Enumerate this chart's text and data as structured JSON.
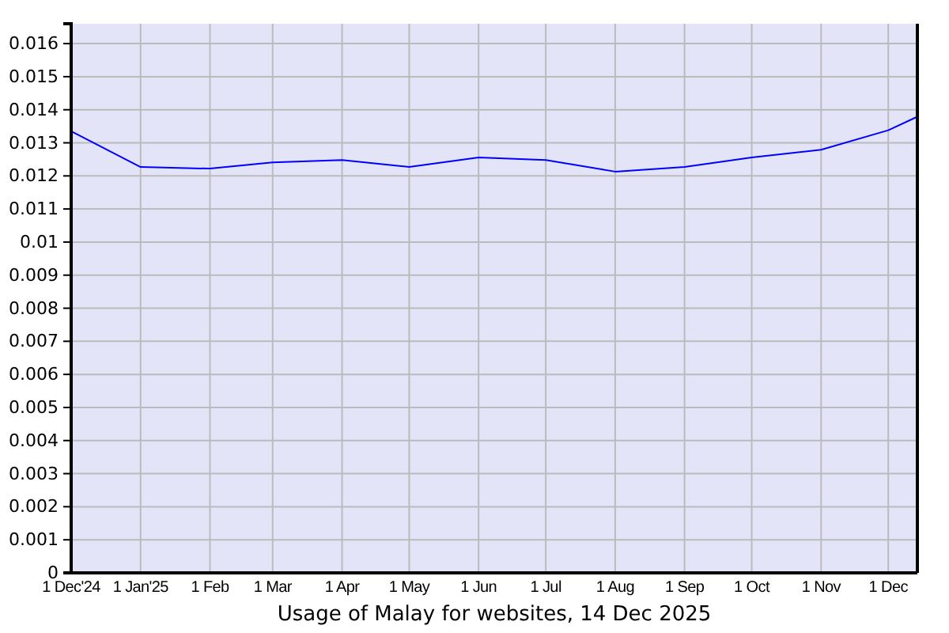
{
  "chart_data": {
    "type": "line",
    "title": "Usage of Malay for websites, 14 Dec 2025",
    "x": [
      "2024-12-01",
      "2025-01-01",
      "2025-02-01",
      "2025-03-01",
      "2025-04-01",
      "2025-05-01",
      "2025-06-01",
      "2025-07-01",
      "2025-08-01",
      "2025-09-01",
      "2025-10-01",
      "2025-11-01",
      "2025-12-01",
      "2025-12-14"
    ],
    "values": [
      0.01335,
      0.01227,
      0.01222,
      0.01241,
      0.01248,
      0.01227,
      0.01256,
      0.01248,
      0.01213,
      0.01227,
      0.01256,
      0.01279,
      0.01338,
      0.01379
    ],
    "color": "#0000ff",
    "xlim": [
      "2024-12-01",
      "2025-12-14"
    ],
    "xticks": [
      {
        "value": "2024-12-01",
        "label": "1 Dec'24"
      },
      {
        "value": "2025-01-01",
        "label": "1 Jan'25"
      },
      {
        "value": "2025-02-01",
        "label": "1 Feb"
      },
      {
        "value": "2025-03-01",
        "label": "1 Mar"
      },
      {
        "value": "2025-04-01",
        "label": "1 Apr"
      },
      {
        "value": "2025-05-01",
        "label": "1 May"
      },
      {
        "value": "2025-06-01",
        "label": "1 Jun"
      },
      {
        "value": "2025-07-01",
        "label": "1 Jul"
      },
      {
        "value": "2025-08-01",
        "label": "1 Aug"
      },
      {
        "value": "2025-09-01",
        "label": "1 Sep"
      },
      {
        "value": "2025-10-01",
        "label": "1 Oct"
      },
      {
        "value": "2025-11-01",
        "label": "1 Nov"
      },
      {
        "value": "2025-12-01",
        "label": "1 Dec"
      }
    ],
    "ylim": [
      0,
      0.0166
    ],
    "yticks": [
      0,
      0.001,
      0.002,
      0.003,
      0.004,
      0.005,
      0.006,
      0.007,
      0.008,
      0.009,
      0.01,
      0.011,
      0.012,
      0.013,
      0.014,
      0.015,
      0.016
    ],
    "grid": true
  }
}
